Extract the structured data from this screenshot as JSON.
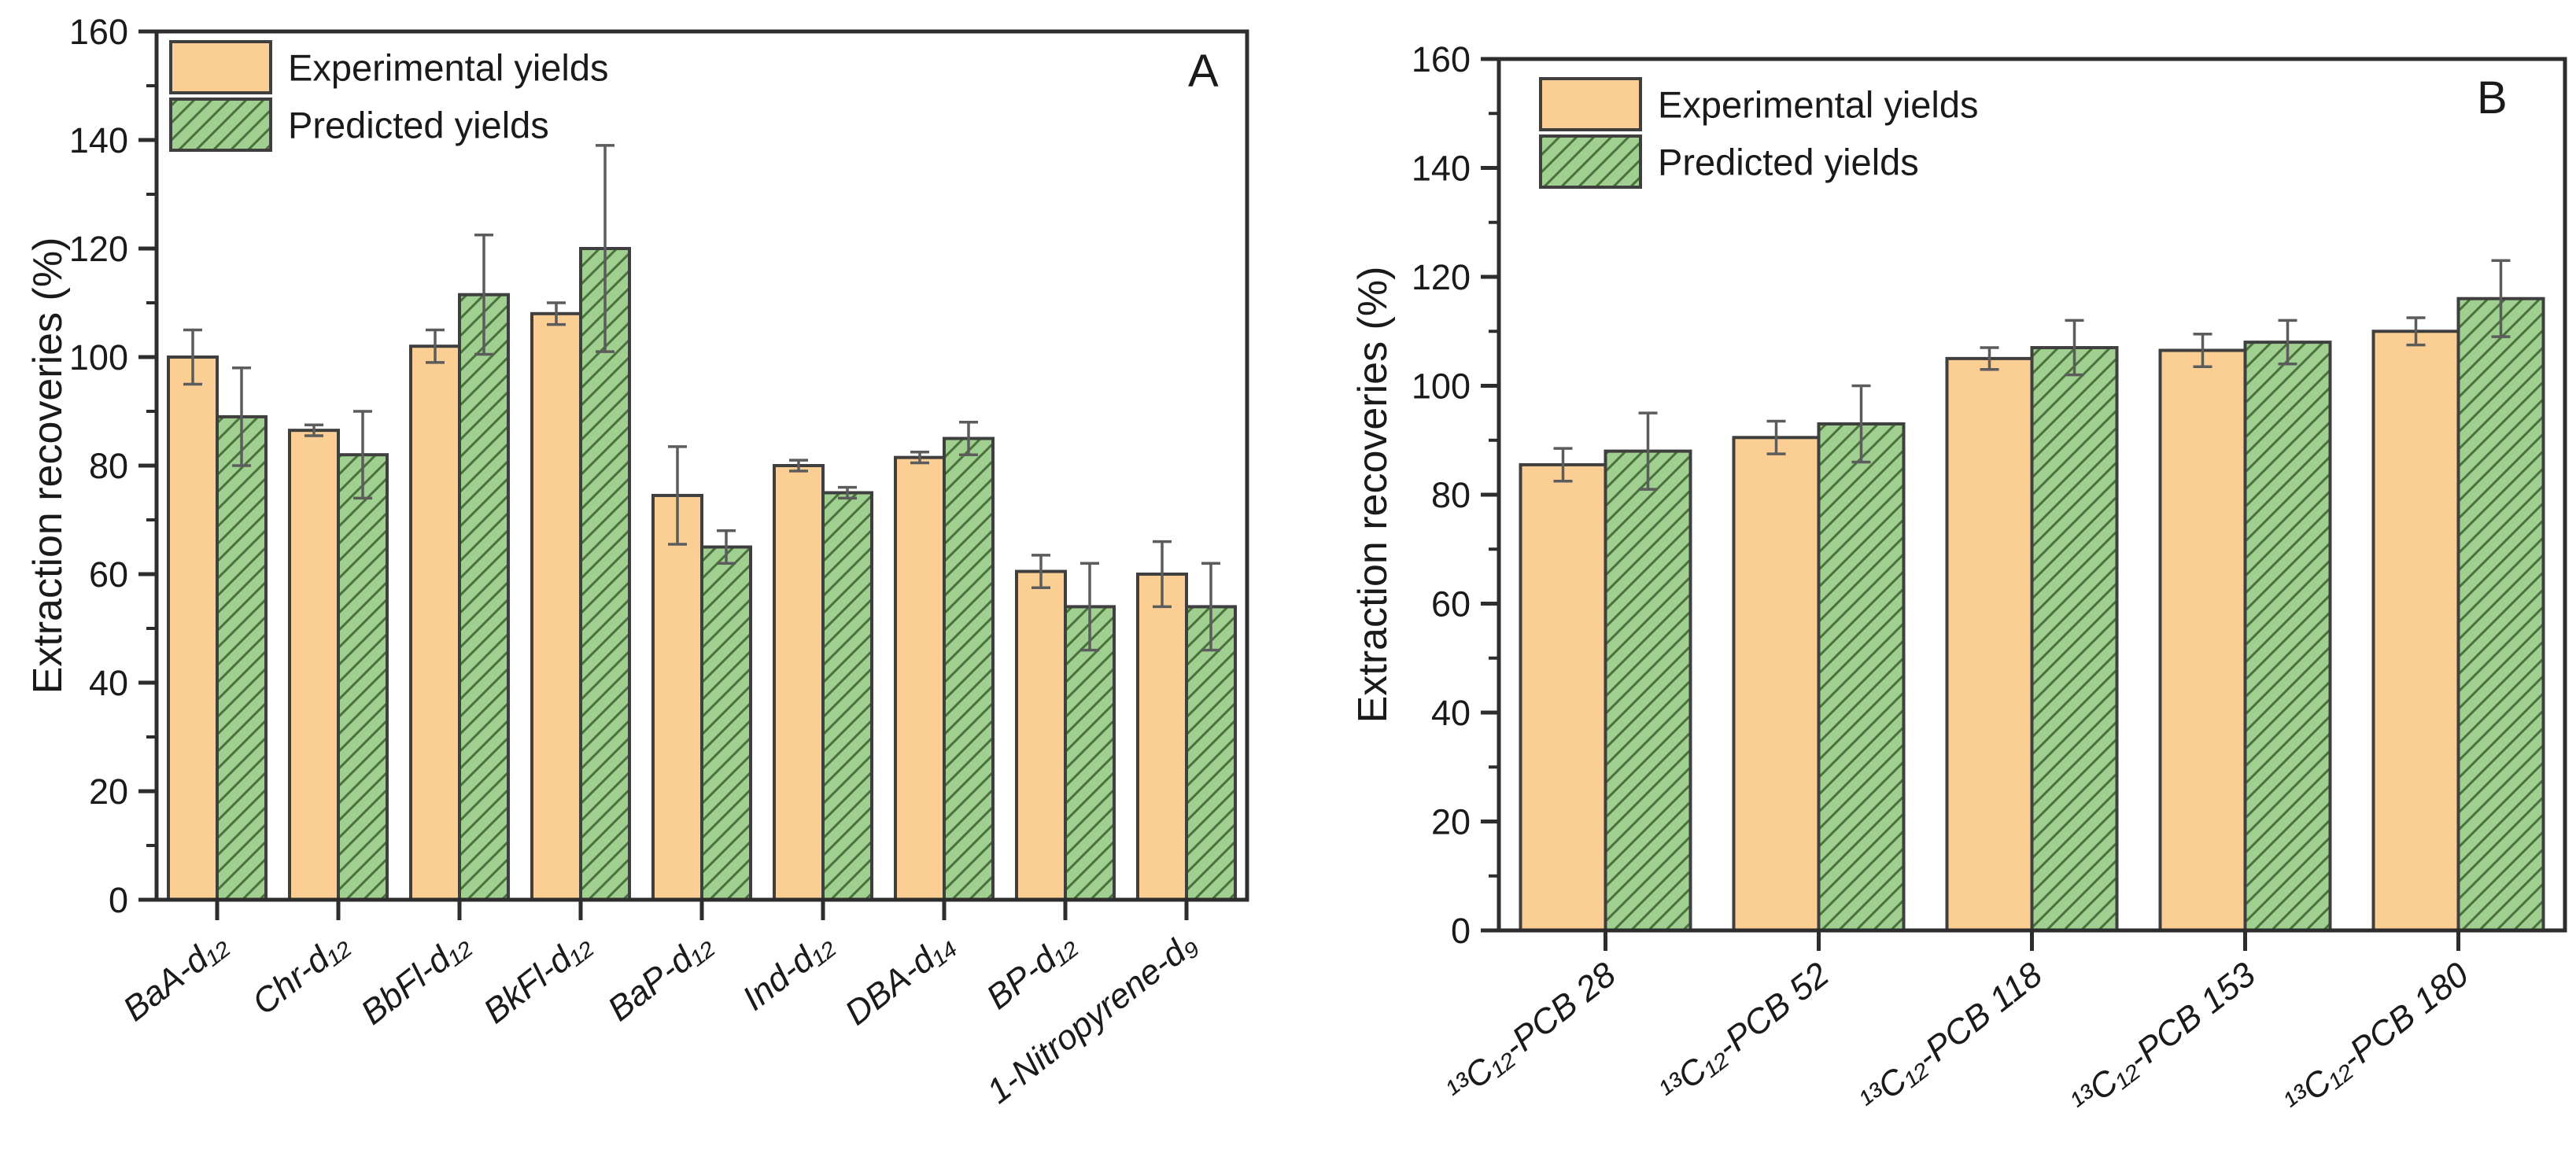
{
  "figure": {
    "description": "Two-panel grouped bar figure comparing experimental and predicted extraction recoveries",
    "background": "#ffffff"
  },
  "colors": {
    "experimental_fill": "#FBCE93",
    "predicted_fill": "#9FD08F",
    "hatch_line": "#4C7040",
    "bar_stroke": "#3F3F3F",
    "axis_stroke": "#2D2D2D",
    "error_bar": "#5C5C5C",
    "panel_label": "#FF0000",
    "text": "#1A1A1A"
  },
  "chart_data": [
    {
      "type": "bar",
      "panel_label": "A",
      "title": "",
      "xlabel": "",
      "ylabel": "Extraction recoveries (%)",
      "ylim": [
        0,
        160
      ],
      "ytick_step": 20,
      "yminor_step": 10,
      "ytick_labels": [
        "0",
        "20",
        "40",
        "60",
        "80",
        "100",
        "120",
        "140",
        "160"
      ],
      "grid": false,
      "legend_position": "top-left",
      "legend": [
        "Experimental yields",
        "Predicted yields"
      ],
      "categories": [
        "BaA-d₁₂",
        "Chr-d₁₂",
        "BbFl-d₁₂",
        "BkFl-d₁₂",
        "BaP-d₁₂",
        "Ind-d₁₂",
        "DBA-d₁₄",
        "BP-d₁₂",
        "1-Nitropyrene-d₉"
      ],
      "series": [
        {
          "name": "Experimental yields",
          "style": "solid-orange",
          "values": [
            100,
            86.5,
            102,
            108,
            74.5,
            80,
            81.5,
            60.5,
            60
          ],
          "errors": [
            5,
            1,
            3,
            2,
            9,
            1,
            1,
            3,
            6
          ]
        },
        {
          "name": "Predicted yields",
          "style": "hatched-green",
          "values": [
            89,
            82,
            111.5,
            120,
            65,
            75,
            85,
            54,
            54
          ],
          "errors": [
            9,
            8,
            11,
            19,
            3,
            1,
            3,
            8,
            8
          ]
        }
      ]
    },
    {
      "type": "bar",
      "panel_label": "B",
      "title": "",
      "xlabel": "",
      "ylabel": "Extraction recoveries (%)",
      "ylim": [
        0,
        160
      ],
      "ytick_step": 20,
      "yminor_step": 10,
      "ytick_labels": [
        "0",
        "20",
        "40",
        "60",
        "80",
        "100",
        "120",
        "140",
        "160"
      ],
      "grid": false,
      "legend_position": "top-left",
      "legend": [
        "Experimental yields",
        "Predicted yields"
      ],
      "categories": [
        "¹³C₁₂-PCB 28",
        "¹³C₁₂-PCB 52",
        "¹³C₁₂-PCB 118",
        "¹³C₁₂-PCB 153",
        "¹³C₁₂-PCB 180"
      ],
      "series": [
        {
          "name": "Experimental yields",
          "style": "solid-orange",
          "values": [
            85.5,
            90.5,
            105,
            106.5,
            110
          ],
          "errors": [
            3,
            3,
            2,
            3,
            2.5
          ]
        },
        {
          "name": "Predicted yields",
          "style": "hatched-green",
          "values": [
            88,
            93,
            107,
            108,
            116
          ],
          "errors": [
            7,
            7,
            5,
            4,
            7
          ]
        }
      ]
    }
  ]
}
